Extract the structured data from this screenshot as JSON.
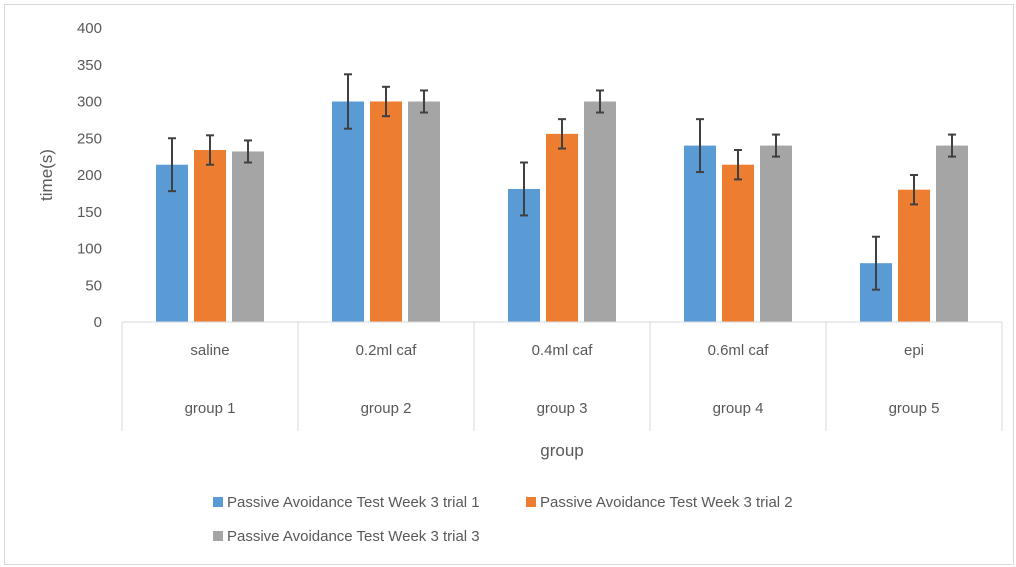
{
  "chart_data": {
    "type": "bar",
    "title": "",
    "xlabel": "group",
    "ylabel": "time(s)",
    "ylim": [
      0,
      400
    ],
    "yticks": [
      0,
      50,
      100,
      150,
      200,
      250,
      300,
      350,
      400
    ],
    "grid": false,
    "legend_position": "bottom",
    "categories": [
      "saline",
      "0.2ml caf",
      "0.4ml caf",
      "0.6ml caf",
      "epi"
    ],
    "category_groups": [
      "group 1",
      "group 2",
      "group 3",
      "group 4",
      "group 5"
    ],
    "series": [
      {
        "name": "Passive Avoidance Test Week 3 trial 1",
        "color": "#5b9bd5",
        "values": [
          214,
          300,
          181,
          240,
          80
        ],
        "errors": [
          36,
          37,
          36,
          36,
          36
        ]
      },
      {
        "name": "Passive Avoidance Test Week 3 trial 2",
        "color": "#ed7d31",
        "values": [
          234,
          300,
          256,
          214,
          180
        ],
        "errors": [
          20,
          20,
          20,
          20,
          20
        ]
      },
      {
        "name": "Passive Avoidance Test Week 3 trial 3",
        "color": "#a5a5a5",
        "values": [
          232,
          300,
          300,
          240,
          240
        ],
        "errors": [
          15,
          15,
          15,
          15,
          15
        ]
      }
    ]
  }
}
